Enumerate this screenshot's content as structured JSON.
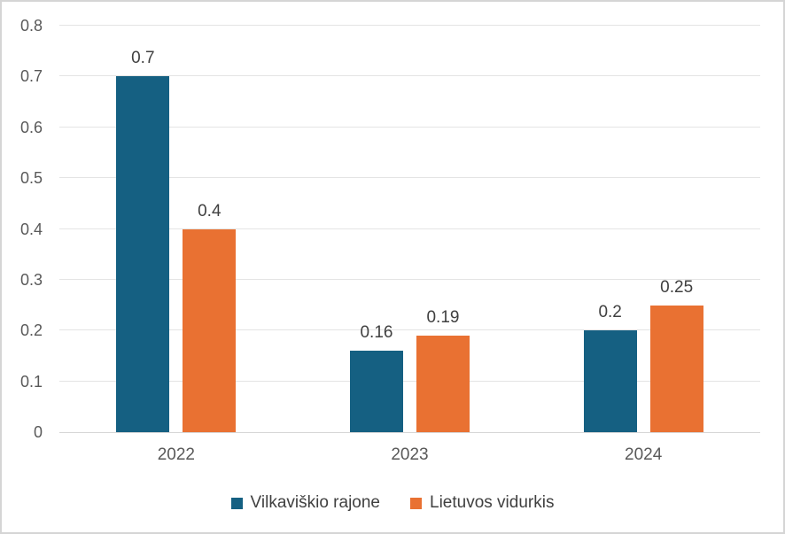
{
  "chart_data": {
    "type": "bar",
    "title": "",
    "categories": [
      "2022",
      "2023",
      "2024"
    ],
    "series": [
      {
        "name": "Vilkaviškio rajone",
        "color": "#156082",
        "values": [
          0.7,
          0.16,
          0.2
        ],
        "labels": [
          "0.7",
          "0.16",
          "0.2"
        ]
      },
      {
        "name": "Lietuvos vidurkis",
        "color": "#E97132",
        "values": [
          0.4,
          0.19,
          0.25
        ],
        "labels": [
          "0.4",
          "0.19",
          "0.25"
        ]
      }
    ],
    "y_axis": {
      "min": 0,
      "max": 0.8,
      "step": 0.1,
      "tick_labels": [
        "0",
        "0.1",
        "0.2",
        "0.3",
        "0.4",
        "0.5",
        "0.6",
        "0.7",
        "0.8"
      ]
    },
    "grid": true,
    "data_labels": true,
    "legend_position": "bottom",
    "style": {
      "grid_color": "#E4E4E4",
      "baseline_color": "#D6D6D6",
      "axis_text_color": "#595959",
      "data_label_color": "#404040",
      "frame_border_color": "#D5D5D5",
      "background": "#FFFFFF"
    }
  }
}
